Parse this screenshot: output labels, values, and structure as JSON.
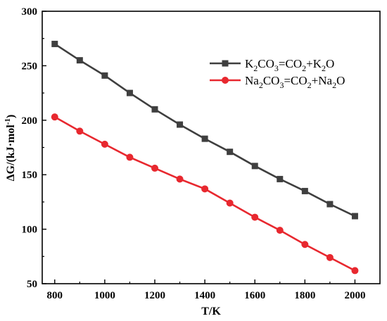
{
  "chart_data": {
    "type": "line",
    "xlabel": "T/K",
    "ylabel": "ΔG/(kJ·mol",
    "ylabel_sup": "-1",
    "ylabel_end": ")",
    "xlim": [
      750,
      2100
    ],
    "ylim": [
      50,
      300
    ],
    "x_ticks": [
      800,
      1000,
      1200,
      1400,
      1600,
      1800,
      2000
    ],
    "y_ticks": [
      50,
      100,
      150,
      200,
      250,
      300
    ],
    "grid": false,
    "legend_position": "top-right",
    "x": [
      800,
      900,
      1000,
      1100,
      1200,
      1300,
      1400,
      1500,
      1600,
      1700,
      1800,
      1900,
      2000
    ],
    "series": [
      {
        "name": "K2CO3=CO2+K2O",
        "name_parts": [
          {
            "t": "K",
            "sub": false
          },
          {
            "t": "2",
            "sub": true
          },
          {
            "t": "CO",
            "sub": false
          },
          {
            "t": "3",
            "sub": true
          },
          {
            "t": "=CO",
            "sub": false
          },
          {
            "t": "2",
            "sub": true
          },
          {
            "t": "+K",
            "sub": false
          },
          {
            "t": "2",
            "sub": true
          },
          {
            "t": "O",
            "sub": false
          }
        ],
        "color": "#3f3f3f",
        "marker": "square",
        "values": [
          270,
          255,
          241,
          225,
          210,
          196,
          183,
          171,
          158,
          146,
          135,
          123,
          112
        ]
      },
      {
        "name": "Na2CO3=CO2+Na2O",
        "name_parts": [
          {
            "t": "Na",
            "sub": false
          },
          {
            "t": "2",
            "sub": true
          },
          {
            "t": "CO",
            "sub": false
          },
          {
            "t": "3",
            "sub": true
          },
          {
            "t": "=CO",
            "sub": false
          },
          {
            "t": "2",
            "sub": true
          },
          {
            "t": "+Na",
            "sub": false
          },
          {
            "t": "2",
            "sub": true
          },
          {
            "t": "O",
            "sub": false
          }
        ],
        "color": "#e8282f",
        "marker": "circle",
        "values": [
          203,
          190,
          178,
          166,
          156,
          146,
          137,
          124,
          111,
          99,
          86,
          74,
          62
        ]
      }
    ]
  }
}
